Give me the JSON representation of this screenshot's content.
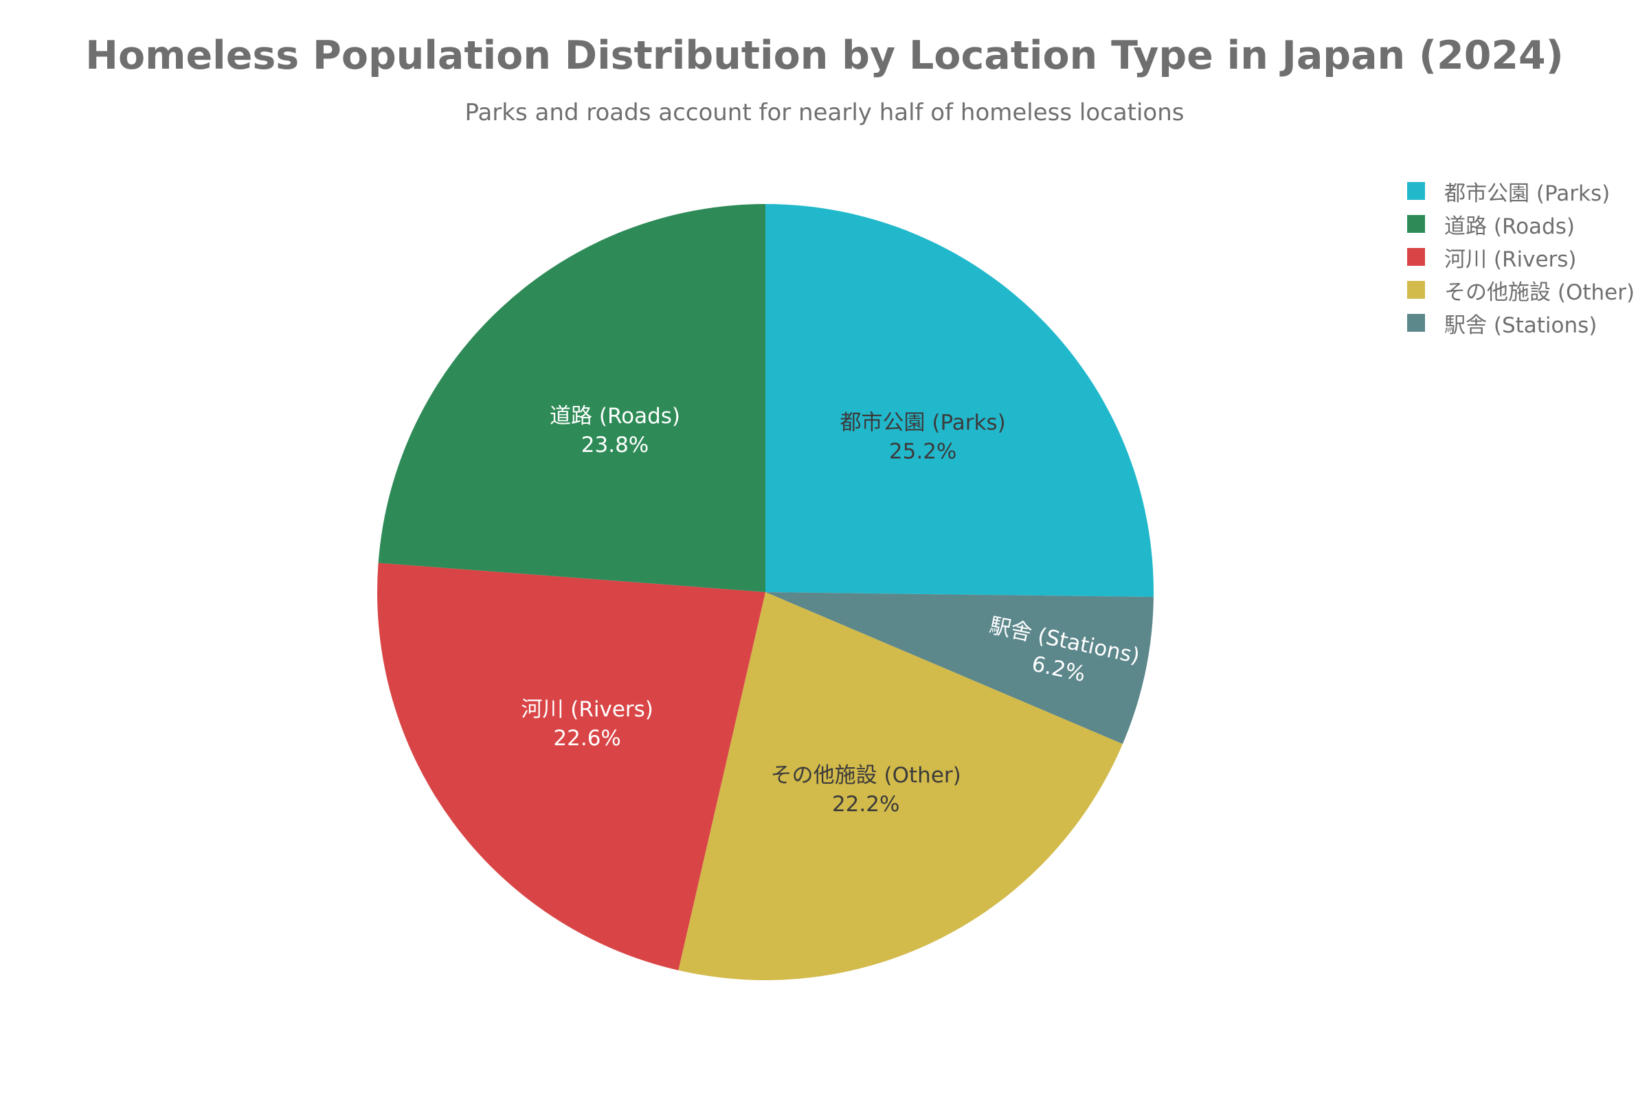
{
  "chart_data": {
    "type": "pie",
    "title": "Homeless Population Distribution by Location Type in Japan (2024)",
    "subtitle": "Parks and roads account for nearly half of homeless locations",
    "legend_position": "top-right",
    "slices": [
      {
        "label": "都市公園 (Parks)",
        "value": 25.2,
        "display": "25.2%",
        "color": "#22b8cc",
        "label_color": "#3b3b3b"
      },
      {
        "label": "駅舎 (Stations)",
        "value": 6.2,
        "display": "6.2%",
        "color": "#5c878b",
        "label_color": "#ffffff"
      },
      {
        "label": "その他施設 (Other)",
        "value": 22.2,
        "display": "22.2%",
        "color": "#d2ba4b",
        "label_color": "#3b3b3b"
      },
      {
        "label": "河川 (Rivers)",
        "value": 22.6,
        "display": "22.6%",
        "color": "#d94546",
        "label_color": "#ffffff"
      },
      {
        "label": "道路 (Roads)",
        "value": 23.8,
        "display": "23.8%",
        "color": "#2e8b57",
        "label_color": "#ffffff"
      }
    ],
    "legend": [
      {
        "label": "都市公園 (Parks)",
        "color": "#22b8cc"
      },
      {
        "label": "道路 (Roads)",
        "color": "#2e8b57"
      },
      {
        "label": "河川 (Rivers)",
        "color": "#d94546"
      },
      {
        "label": "その他施設 (Other)",
        "color": "#d2ba4b"
      },
      {
        "label": "駅舎 (Stations)",
        "color": "#5c878b"
      }
    ]
  }
}
